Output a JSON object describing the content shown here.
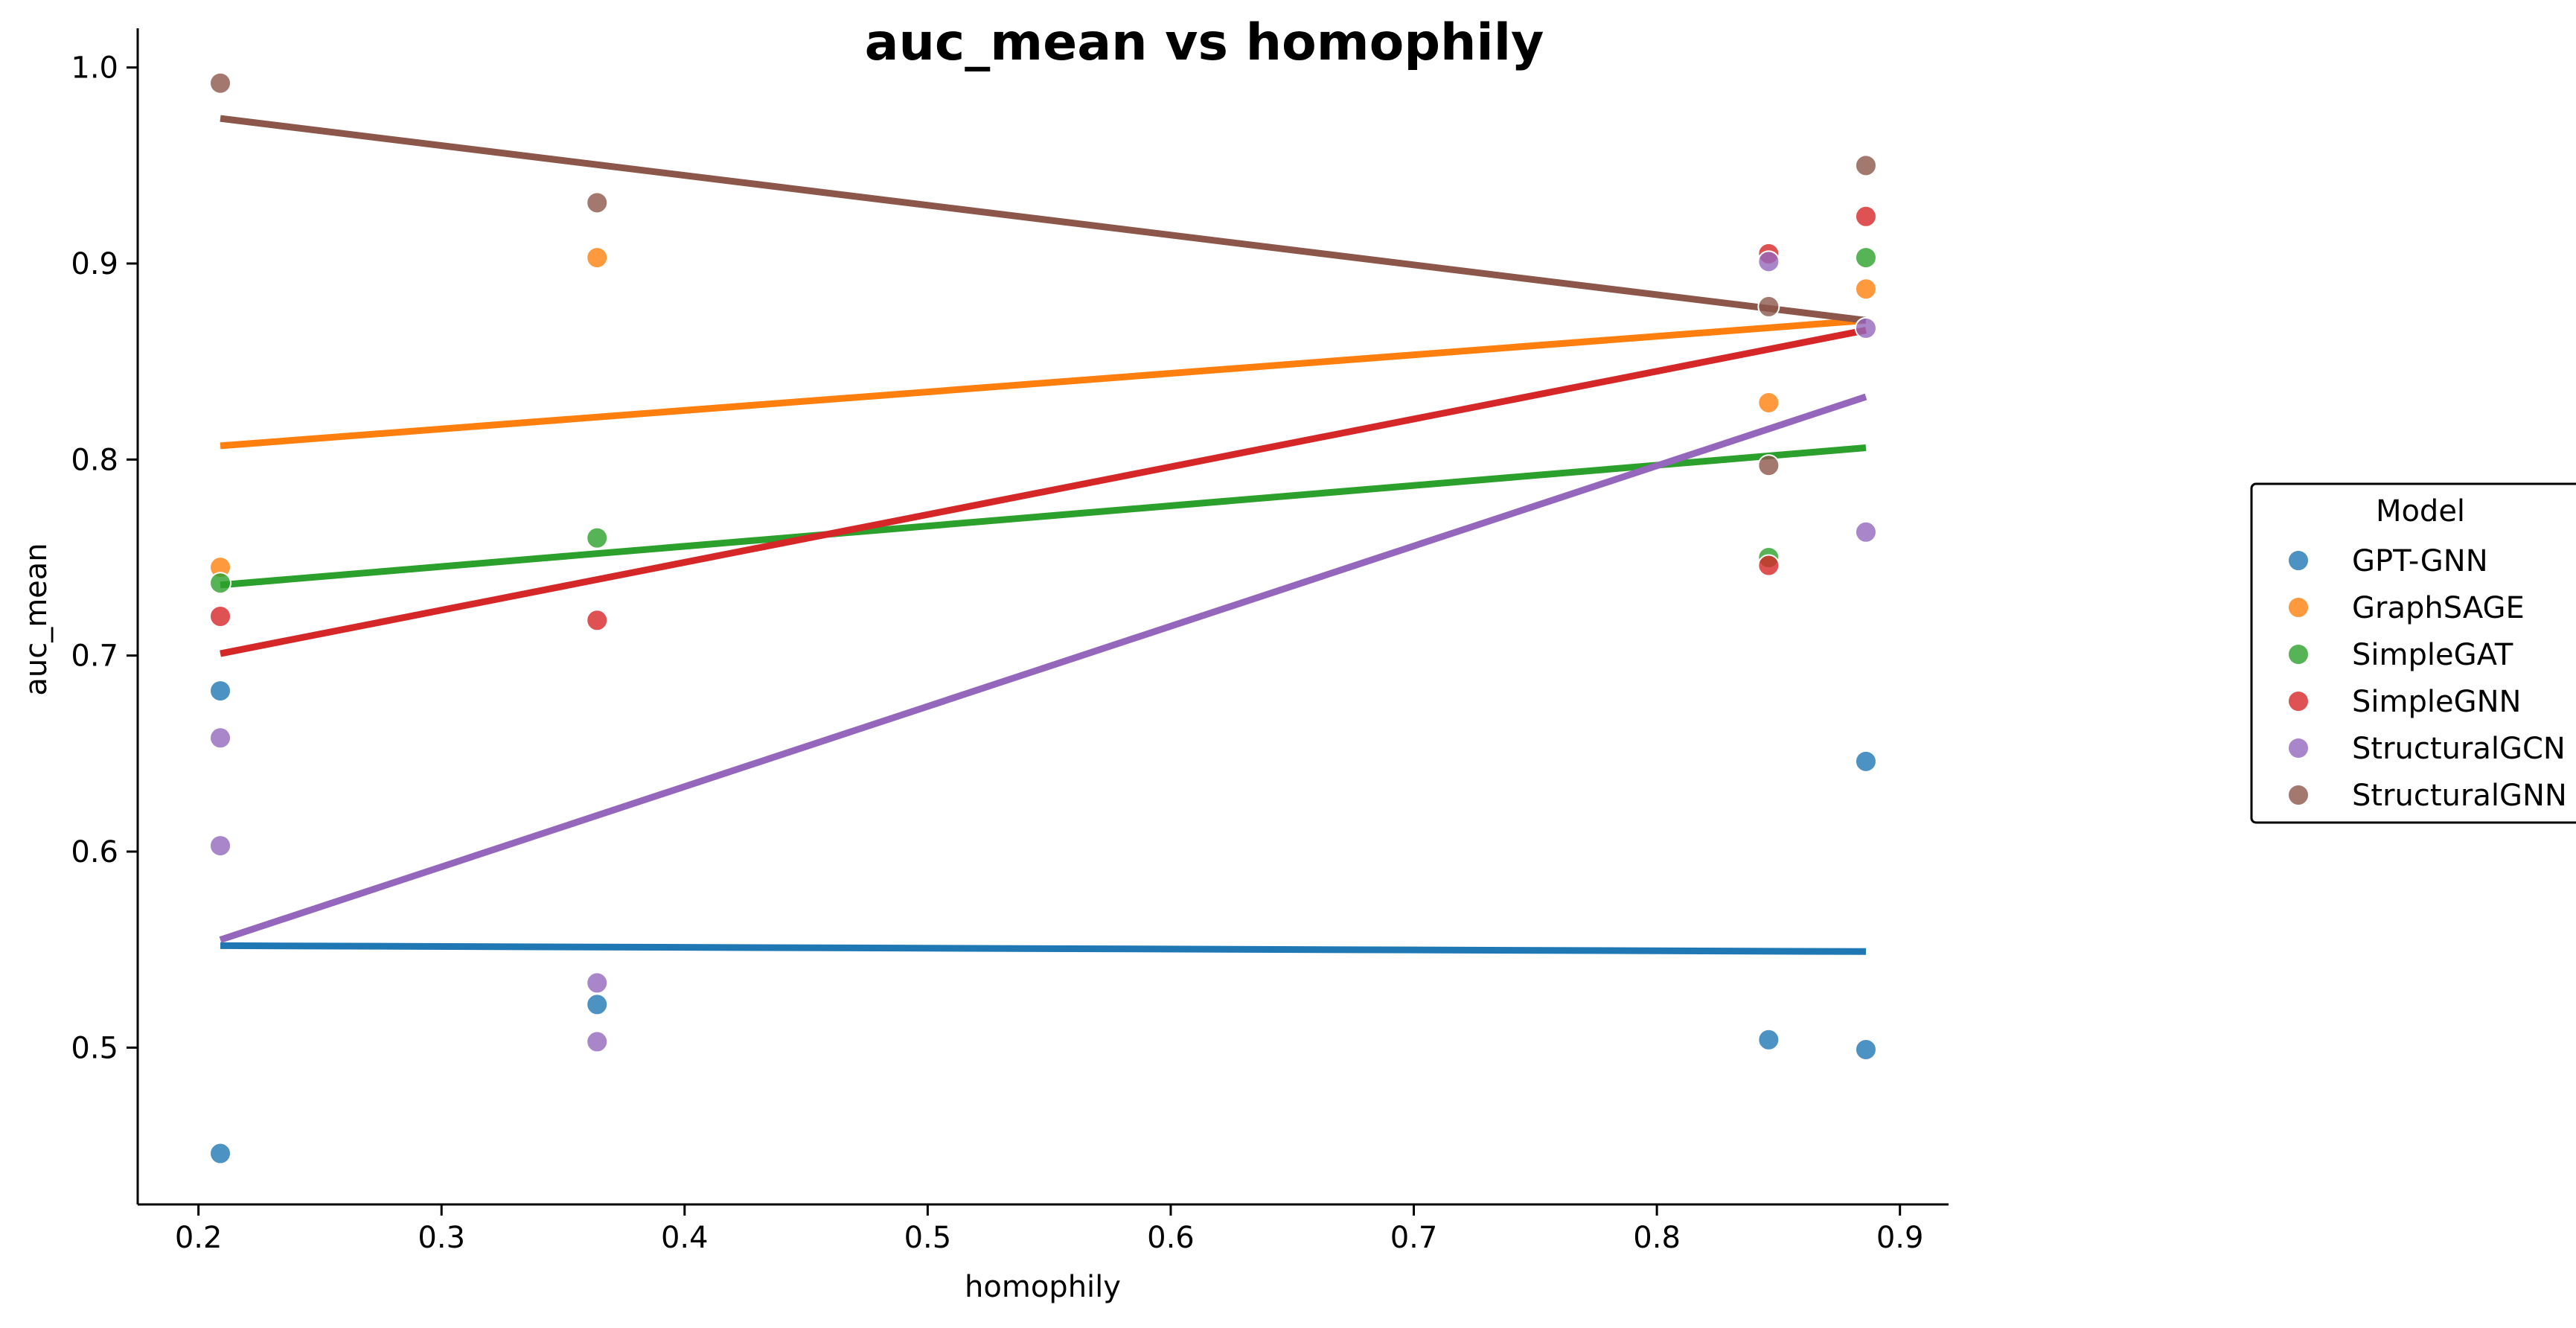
{
  "chart_data": {
    "type": "scatter",
    "title": "auc_mean vs homophily",
    "xlabel": "homophily",
    "ylabel": "auc_mean",
    "xlim": [
      0.175,
      0.92
    ],
    "ylim": [
      0.42,
      1.02
    ],
    "xticks": [
      0.2,
      0.3,
      0.4,
      0.5,
      0.6,
      0.7,
      0.8,
      0.9
    ],
    "yticks": [
      0.5,
      0.6,
      0.7,
      0.8,
      0.9,
      1.0
    ],
    "xtick_labels": [
      "0.2",
      "0.3",
      "0.4",
      "0.5",
      "0.6",
      "0.7",
      "0.8",
      "0.9"
    ],
    "ytick_labels": [
      "0.5",
      "0.6",
      "0.7",
      "0.8",
      "0.9",
      "1.0"
    ],
    "grid": false,
    "legend": {
      "title": "Model",
      "placement": "right"
    },
    "series": [
      {
        "name": "GPT-GNN",
        "color": "#1f77b4",
        "points": [
          [
            0.209,
            0.682
          ],
          [
            0.209,
            0.446
          ],
          [
            0.364,
            0.522
          ],
          [
            0.846,
            0.504
          ],
          [
            0.886,
            0.646
          ],
          [
            0.886,
            0.499
          ]
        ],
        "fit_line": [
          [
            0.209,
            0.552
          ],
          [
            0.886,
            0.549
          ]
        ]
      },
      {
        "name": "GraphSAGE",
        "color": "#ff7f0e",
        "points": [
          [
            0.209,
            0.745
          ],
          [
            0.364,
            0.903
          ],
          [
            0.846,
            0.829
          ],
          [
            0.886,
            0.887
          ]
        ],
        "fit_line": [
          [
            0.209,
            0.807
          ],
          [
            0.886,
            0.871
          ]
        ]
      },
      {
        "name": "SimpleGAT",
        "color": "#2ca02c",
        "points": [
          [
            0.209,
            0.737
          ],
          [
            0.364,
            0.76
          ],
          [
            0.846,
            0.75
          ],
          [
            0.886,
            0.903
          ]
        ],
        "fit_line": [
          [
            0.209,
            0.736
          ],
          [
            0.886,
            0.806
          ]
        ]
      },
      {
        "name": "SimpleGNN",
        "color": "#d62728",
        "points": [
          [
            0.209,
            0.72
          ],
          [
            0.364,
            0.718
          ],
          [
            0.846,
            0.905
          ],
          [
            0.846,
            0.746
          ],
          [
            0.886,
            0.924
          ]
        ],
        "fit_line": [
          [
            0.209,
            0.701
          ],
          [
            0.886,
            0.866
          ]
        ]
      },
      {
        "name": "StructuralGCN",
        "color": "#9467bd",
        "points": [
          [
            0.209,
            0.658
          ],
          [
            0.209,
            0.603
          ],
          [
            0.364,
            0.533
          ],
          [
            0.364,
            0.503
          ],
          [
            0.846,
            0.901
          ],
          [
            0.886,
            0.867
          ],
          [
            0.886,
            0.763
          ]
        ],
        "fit_line": [
          [
            0.209,
            0.555
          ],
          [
            0.886,
            0.832
          ]
        ]
      },
      {
        "name": "StructuralGNN",
        "color": "#8c564b",
        "points": [
          [
            0.209,
            0.992
          ],
          [
            0.364,
            0.931
          ],
          [
            0.846,
            0.878
          ],
          [
            0.846,
            0.797
          ],
          [
            0.886,
            0.95
          ]
        ],
        "fit_line": [
          [
            0.209,
            0.974
          ],
          [
            0.886,
            0.871
          ]
        ]
      }
    ]
  }
}
